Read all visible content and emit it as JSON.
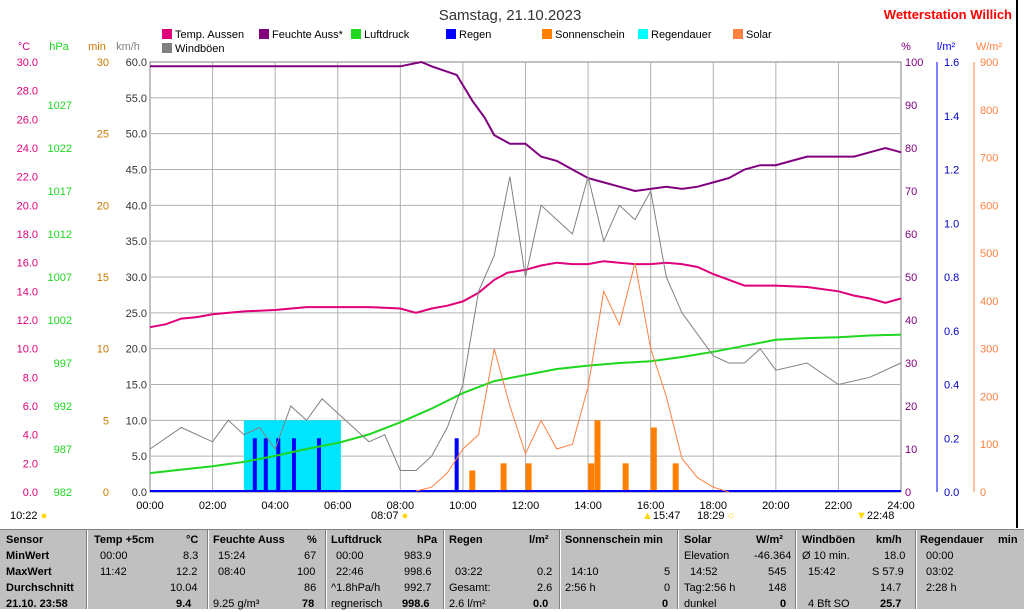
{
  "title": "Samstag, 21.10.2023",
  "station": "Wetterstation Willich",
  "unit_labels": {
    "temp": "°C",
    "pressure": "hPa",
    "minutes": "min",
    "wind": "km/h",
    "percent": "%",
    "rain": "l/m²",
    "solar": "W/m²"
  },
  "legend": [
    {
      "label": "Temp. Aussen",
      "color": "#e0007a"
    },
    {
      "label": "Feuchte Auss*",
      "color": "#800080"
    },
    {
      "label": "Luftdruck",
      "color": "#1ed71e"
    },
    {
      "label": "Regen",
      "color": "#0000ff"
    },
    {
      "label": "Sonnenschein",
      "color": "#ff8000"
    },
    {
      "label": "Regendauer",
      "color": "#00ffff"
    },
    {
      "label": "Solar",
      "color": "#ff8040"
    },
    {
      "label": "Windböen",
      "color": "#808080"
    }
  ],
  "colors": {
    "temp": "#e0007a",
    "humidity": "#800080",
    "pressure": "#1ed71e",
    "rain": "#0000ff",
    "sunshine": "#ff8000",
    "rainduration": "#00e5ff",
    "solar": "#ff8040",
    "wind": "#808080",
    "station": "#ff0000",
    "min": "#c87800"
  },
  "axis_ticks": {
    "temp": [
      "0.0",
      "2.0",
      "4.0",
      "6.0",
      "8.0",
      "10.0",
      "12.0",
      "14.0",
      "16.0",
      "18.0",
      "20.0",
      "22.0",
      "24.0",
      "26.0",
      "28.0",
      "30.0"
    ],
    "pressure": [
      "982",
      "987",
      "992",
      "997",
      "1002",
      "1007",
      "1012",
      "1017",
      "1022",
      "1027"
    ],
    "minutes": [
      "0",
      "5",
      "10",
      "15",
      "20",
      "25",
      "30"
    ],
    "wind": [
      "0.0",
      "5.0",
      "10.0",
      "15.0",
      "20.0",
      "25.0",
      "30.0",
      "35.0",
      "40.0",
      "45.0",
      "50.0",
      "55.0",
      "60.0"
    ],
    "humidity": [
      "0",
      "10",
      "20",
      "30",
      "40",
      "50",
      "60",
      "70",
      "80",
      "90",
      "100"
    ],
    "rain": [
      "0.0",
      "0.2",
      "0.4",
      "0.6",
      "0.8",
      "1.0",
      "1.2",
      "1.4",
      "1.6"
    ],
    "solar": [
      "0",
      "100",
      "200",
      "300",
      "400",
      "500",
      "600",
      "700",
      "800",
      "900"
    ],
    "time": [
      "00:00",
      "02:00",
      "04:00",
      "06:00",
      "08:00",
      "10:00",
      "12:00",
      "14:00",
      "16:00",
      "18:00",
      "20:00",
      "22:00",
      "24:00"
    ]
  },
  "markers": {
    "now": "10:22",
    "sunrise": "08:07",
    "solar_noon": "15:47",
    "sunset": "18:29",
    "moon": "22:48"
  },
  "chart_data": {
    "type": "line",
    "title": "Samstag, 21.10.2023",
    "x_range": [
      "00:00",
      "24:00"
    ],
    "ylim": {
      "temp": [
        0,
        30
      ],
      "pressure": [
        982,
        1032
      ],
      "minutes": [
        0,
        30
      ],
      "wind": [
        0,
        60
      ],
      "humidity": [
        0,
        100
      ],
      "rain": [
        0,
        1.6
      ],
      "solar": [
        0,
        900
      ]
    },
    "grid": true,
    "legend_position": "top",
    "series": [
      {
        "name": "Temp. Aussen",
        "axis": "temp",
        "x": [
          0,
          0.5,
          1,
          1.5,
          2,
          3,
          4,
          5,
          6,
          7,
          8,
          8.5,
          9,
          9.5,
          10,
          10.5,
          11,
          11.42,
          12,
          12.5,
          13,
          13.5,
          14,
          14.5,
          15,
          15.5,
          16,
          16.5,
          17,
          17.5,
          18,
          19,
          20,
          21,
          22,
          22.5,
          23,
          23.5,
          24
        ],
        "y": [
          11.5,
          11.7,
          12.1,
          12.2,
          12.4,
          12.6,
          12.7,
          12.9,
          12.9,
          12.9,
          12.8,
          12.5,
          12.8,
          13.0,
          13.3,
          13.9,
          14.8,
          15.3,
          15.5,
          15.8,
          16.0,
          15.9,
          15.9,
          16.1,
          16.0,
          15.9,
          15.9,
          16.0,
          15.9,
          15.7,
          15.2,
          14.4,
          14.4,
          14.3,
          14.0,
          13.7,
          13.5,
          13.2,
          13.5
        ]
      },
      {
        "name": "Feuchte Auss*",
        "axis": "humidity",
        "x": [
          0,
          2,
          4,
          6,
          7,
          8,
          8.67,
          9,
          9.8,
          10.3,
          10.7,
          11,
          11.5,
          12,
          12.5,
          13,
          13.5,
          14,
          14.5,
          15,
          15.5,
          16,
          16.5,
          17,
          17.5,
          18,
          18.5,
          19,
          19.5,
          20,
          20.5,
          21,
          21.5,
          22,
          22.5,
          23,
          23.5,
          24
        ],
        "y": [
          99,
          99,
          99,
          99,
          99,
          99,
          100,
          99,
          97,
          91,
          87,
          83,
          81,
          81,
          78,
          77,
          75,
          73,
          72,
          71,
          70,
          70.5,
          71,
          70.5,
          71,
          72,
          73,
          75,
          76,
          76,
          77,
          78,
          78,
          78,
          78,
          79,
          80,
          79
        ]
      },
      {
        "name": "Luftdruck",
        "axis": "pressure",
        "x": [
          0,
          1,
          2,
          3,
          4,
          5,
          6,
          7,
          8,
          9,
          10,
          11,
          12,
          13,
          14,
          15,
          16,
          17,
          18,
          19,
          20,
          21,
          22,
          23,
          24
        ],
        "y": [
          984.2,
          984.6,
          985.0,
          985.5,
          986.2,
          987.0,
          987.7,
          988.7,
          990.1,
          991.7,
          993.5,
          994.9,
          995.6,
          996.3,
          996.7,
          997.0,
          997.2,
          997.7,
          998.3,
          999.0,
          999.7,
          999.9,
          1000.0,
          1000.2,
          1000.3
        ]
      },
      {
        "name": "Windböen",
        "axis": "wind",
        "x": [
          0,
          1,
          2,
          2.5,
          3,
          3.5,
          4,
          4.5,
          5,
          5.5,
          6,
          6.5,
          7,
          7.5,
          8,
          8.5,
          9,
          9.5,
          10,
          10.5,
          11,
          11.5,
          12,
          12.5,
          13,
          13.5,
          14,
          14.5,
          15,
          15.5,
          16,
          16.5,
          17,
          17.5,
          18,
          18.5,
          19,
          19.5,
          20,
          21,
          22,
          23,
          24
        ],
        "y": [
          6,
          9,
          7,
          10,
          8,
          9,
          6,
          12,
          10,
          13,
          11,
          9,
          7,
          8,
          3,
          3,
          5,
          9,
          15,
          28,
          33,
          44,
          30,
          40,
          38,
          36,
          44,
          35,
          40,
          38,
          42,
          30,
          25,
          22,
          19,
          18,
          18,
          20,
          17,
          18,
          15,
          16,
          18
        ]
      },
      {
        "name": "Solar",
        "axis": "solar",
        "x": [
          8.5,
          9,
          9.5,
          10,
          10.5,
          11,
          11.5,
          12,
          12.5,
          13,
          13.5,
          14,
          14.5,
          15,
          15.5,
          16,
          16.5,
          17,
          17.5,
          18,
          18.5
        ],
        "y": [
          2,
          10,
          40,
          90,
          120,
          300,
          180,
          80,
          150,
          90,
          100,
          220,
          420,
          350,
          480,
          300,
          200,
          70,
          30,
          10,
          0
        ]
      }
    ],
    "sunshine_minutes": [
      {
        "x": 10.3,
        "y": 1.5
      },
      {
        "x": 11.3,
        "y": 2
      },
      {
        "x": 12.1,
        "y": 2
      },
      {
        "x": 14.1,
        "y": 2
      },
      {
        "x": 14.3,
        "y": 5
      },
      {
        "x": 15.2,
        "y": 2
      },
      {
        "x": 16.1,
        "y": 4.5
      },
      {
        "x": 16.8,
        "y": 2
      }
    ],
    "rain_events": [
      {
        "x": 3.35,
        "y": 0.2
      },
      {
        "x": 3.7,
        "y": 0.2
      },
      {
        "x": 4.1,
        "y": 0.2
      },
      {
        "x": 4.6,
        "y": 0.2
      },
      {
        "x": 5.4,
        "y": 0.2
      },
      {
        "x": 9.8,
        "y": 0.2
      }
    ],
    "rain_duration_blocks": [
      {
        "from": 3.0,
        "to": 6.1
      }
    ]
  },
  "table": {
    "headers": [
      "Sensor",
      "Temp +5cm",
      "°C",
      "Feuchte Auss",
      "%",
      "Luftdruck",
      "hPa",
      "Regen",
      "l/m²",
      "Sonnenschein min",
      "Solar",
      "W/m²",
      "Windböen",
      "km/h",
      "Regendauer",
      "min"
    ],
    "rows": [
      {
        "label": "MinWert",
        "cells": [
          "00:00",
          "8.3",
          "15:24",
          "67",
          "00:00",
          "983.9",
          "",
          "",
          "",
          "",
          "Elevation",
          "-46.364",
          "Ø 10 min.",
          "18.0",
          "00:00",
          ""
        ]
      },
      {
        "label": "MaxWert",
        "cells": [
          "11:42",
          "12.2",
          "08:40",
          "100",
          "22:46",
          "998.6",
          "03:22",
          "0.2",
          "14:10",
          "5",
          "14:52",
          "545",
          "15:42",
          "S 57.9",
          "03:02",
          ""
        ]
      },
      {
        "label": "Durchschnitt",
        "cells": [
          "",
          "10.04",
          "",
          "86",
          "^1.8hPa/h",
          "992.7",
          "Gesamt:",
          "2.6",
          "2:56 h",
          "0",
          "Tag:2:56 h",
          "148",
          "",
          "14.7",
          "2:28 h",
          ""
        ]
      },
      {
        "label": "21.10. 23:58",
        "cells": [
          "",
          "9.4",
          "9.25 g/m³",
          "78",
          "regnerisch",
          "998.6",
          "2.6 l/m²",
          "0.0",
          "",
          "0",
          "dunkel",
          "0",
          "4 Bft SO",
          "25.7",
          "",
          ""
        ]
      }
    ]
  }
}
